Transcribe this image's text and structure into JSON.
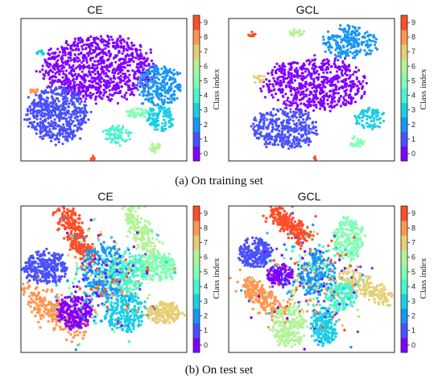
{
  "colors": [
    "#8000ff",
    "#4a50fb",
    "#1996f3",
    "#1acee3",
    "#4cf2ce",
    "#80ffb4",
    "#b2f396",
    "#e6ce74",
    "#ff964f",
    "#ff4d27"
  ],
  "colorbar": {
    "label": "Class index",
    "ticks": [
      "0",
      "1",
      "2",
      "3",
      "4",
      "5",
      "6",
      "7",
      "8",
      "9"
    ]
  },
  "captions": {
    "train": "(a) On training set",
    "test": "(b) On test set"
  },
  "chart_data": [
    {
      "type": "scatter",
      "title": "CE",
      "subset": "training set",
      "xlabel": "",
      "ylabel": "",
      "grid": false,
      "colorbar": "Class index",
      "clusters": [
        {
          "class": 0,
          "cx": 0.47,
          "cy": 0.35,
          "rx": 0.33,
          "ry": 0.22,
          "n": 950,
          "shape": "blob"
        },
        {
          "class": 1,
          "cx": 0.22,
          "cy": 0.67,
          "rx": 0.18,
          "ry": 0.19,
          "n": 560,
          "shape": "blob"
        },
        {
          "class": 2,
          "cx": 0.83,
          "cy": 0.47,
          "rx": 0.13,
          "ry": 0.14,
          "n": 270,
          "shape": "blob"
        },
        {
          "class": 3,
          "cx": 0.84,
          "cy": 0.7,
          "rx": 0.08,
          "ry": 0.09,
          "n": 110,
          "shape": "blob"
        },
        {
          "class": 3,
          "cx": 0.12,
          "cy": 0.24,
          "rx": 0.03,
          "ry": 0.015,
          "n": 14,
          "shape": "blob"
        },
        {
          "class": 4,
          "cx": 0.58,
          "cy": 0.82,
          "rx": 0.08,
          "ry": 0.07,
          "n": 75,
          "shape": "blob"
        },
        {
          "class": 5,
          "cx": 0.7,
          "cy": 0.66,
          "rx": 0.07,
          "ry": 0.035,
          "n": 45,
          "shape": "blob"
        },
        {
          "class": 6,
          "cx": 0.81,
          "cy": 0.91,
          "rx": 0.035,
          "ry": 0.035,
          "n": 25,
          "shape": "blob"
        },
        {
          "class": 8,
          "cx": 0.08,
          "cy": 0.51,
          "rx": 0.025,
          "ry": 0.02,
          "n": 12,
          "shape": "blob"
        },
        {
          "class": 9,
          "cx": 0.43,
          "cy": 0.98,
          "rx": 0.015,
          "ry": 0.015,
          "n": 6,
          "shape": "blob"
        }
      ]
    },
    {
      "type": "scatter",
      "title": "GCL",
      "subset": "training set",
      "xlabel": "",
      "ylabel": "",
      "grid": false,
      "colorbar": "Class index",
      "clusters": [
        {
          "class": 0,
          "cx": 0.52,
          "cy": 0.46,
          "rx": 0.3,
          "ry": 0.18,
          "n": 650,
          "shape": "blob"
        },
        {
          "class": 1,
          "cx": 0.34,
          "cy": 0.77,
          "rx": 0.2,
          "ry": 0.14,
          "n": 380,
          "shape": "blob"
        },
        {
          "class": 2,
          "cx": 0.73,
          "cy": 0.17,
          "rx": 0.16,
          "ry": 0.11,
          "n": 230,
          "shape": "blob"
        },
        {
          "class": 3,
          "cx": 0.85,
          "cy": 0.7,
          "rx": 0.09,
          "ry": 0.07,
          "n": 90,
          "shape": "blob"
        },
        {
          "class": 5,
          "cx": 0.77,
          "cy": 0.87,
          "rx": 0.04,
          "ry": 0.04,
          "n": 25,
          "shape": "blob"
        },
        {
          "class": 6,
          "cx": 0.41,
          "cy": 0.1,
          "rx": 0.05,
          "ry": 0.025,
          "n": 22,
          "shape": "blob"
        },
        {
          "class": 7,
          "cx": 0.18,
          "cy": 0.42,
          "rx": 0.035,
          "ry": 0.03,
          "n": 16,
          "shape": "blob"
        },
        {
          "class": 9,
          "cx": 0.14,
          "cy": 0.11,
          "rx": 0.025,
          "ry": 0.02,
          "n": 10,
          "shape": "blob"
        },
        {
          "class": 9,
          "cx": 0.52,
          "cy": 0.98,
          "rx": 0.012,
          "ry": 0.012,
          "n": 5,
          "shape": "blob"
        }
      ]
    },
    {
      "type": "scatter",
      "title": "CE",
      "subset": "test set",
      "xlabel": "",
      "ylabel": "",
      "grid": false,
      "colorbar": "Class index",
      "clusters": [
        {
          "class": 9,
          "cx": 0.33,
          "cy": 0.2,
          "rx": 0.08,
          "ry": 0.17,
          "n": 260,
          "shape": "arm"
        },
        {
          "class": 1,
          "cx": 0.15,
          "cy": 0.42,
          "rx": 0.13,
          "ry": 0.11,
          "n": 260,
          "shape": "blob"
        },
        {
          "class": 8,
          "cx": 0.2,
          "cy": 0.72,
          "rx": 0.14,
          "ry": 0.14,
          "n": 260,
          "shape": "arm"
        },
        {
          "class": 0,
          "cx": 0.33,
          "cy": 0.72,
          "rx": 0.1,
          "ry": 0.12,
          "n": 230,
          "shape": "blob"
        },
        {
          "class": 2,
          "cx": 0.5,
          "cy": 0.45,
          "rx": 0.13,
          "ry": 0.2,
          "n": 280,
          "shape": "blob"
        },
        {
          "class": 6,
          "cx": 0.73,
          "cy": 0.18,
          "rx": 0.08,
          "ry": 0.17,
          "n": 200,
          "shape": "arm"
        },
        {
          "class": 5,
          "cx": 0.82,
          "cy": 0.42,
          "rx": 0.12,
          "ry": 0.09,
          "n": 200,
          "shape": "blob"
        },
        {
          "class": 7,
          "cx": 0.85,
          "cy": 0.73,
          "rx": 0.11,
          "ry": 0.07,
          "n": 170,
          "shape": "blob"
        },
        {
          "class": 3,
          "cx": 0.63,
          "cy": 0.72,
          "rx": 0.12,
          "ry": 0.14,
          "n": 230,
          "shape": "blob"
        },
        {
          "class": 4,
          "cx": 0.64,
          "cy": 0.45,
          "rx": 0.12,
          "ry": 0.14,
          "n": 180,
          "shape": "blob"
        }
      ]
    },
    {
      "type": "scatter",
      "title": "GCL",
      "subset": "test set",
      "xlabel": "",
      "ylabel": "",
      "grid": false,
      "colorbar": "Class index",
      "clusters": [
        {
          "class": 9,
          "cx": 0.36,
          "cy": 0.12,
          "rx": 0.1,
          "ry": 0.11,
          "n": 230,
          "shape": "arm"
        },
        {
          "class": 1,
          "cx": 0.16,
          "cy": 0.32,
          "rx": 0.1,
          "ry": 0.1,
          "n": 200,
          "shape": "blob"
        },
        {
          "class": 8,
          "cx": 0.21,
          "cy": 0.63,
          "rx": 0.11,
          "ry": 0.13,
          "n": 220,
          "shape": "arm"
        },
        {
          "class": 0,
          "cx": 0.31,
          "cy": 0.47,
          "rx": 0.08,
          "ry": 0.07,
          "n": 160,
          "shape": "blob"
        },
        {
          "class": 2,
          "cx": 0.53,
          "cy": 0.46,
          "rx": 0.11,
          "ry": 0.15,
          "n": 220,
          "shape": "blob"
        },
        {
          "class": 5,
          "cx": 0.72,
          "cy": 0.22,
          "rx": 0.09,
          "ry": 0.14,
          "n": 200,
          "shape": "blob"
        },
        {
          "class": 7,
          "cx": 0.82,
          "cy": 0.55,
          "rx": 0.12,
          "ry": 0.09,
          "n": 190,
          "shape": "arm"
        },
        {
          "class": 6,
          "cx": 0.36,
          "cy": 0.82,
          "rx": 0.1,
          "ry": 0.14,
          "n": 190,
          "shape": "blob"
        },
        {
          "class": 3,
          "cx": 0.57,
          "cy": 0.82,
          "rx": 0.08,
          "ry": 0.13,
          "n": 180,
          "shape": "blob"
        },
        {
          "class": 4,
          "cx": 0.68,
          "cy": 0.62,
          "rx": 0.09,
          "ry": 0.09,
          "n": 160,
          "shape": "blob"
        }
      ]
    }
  ]
}
